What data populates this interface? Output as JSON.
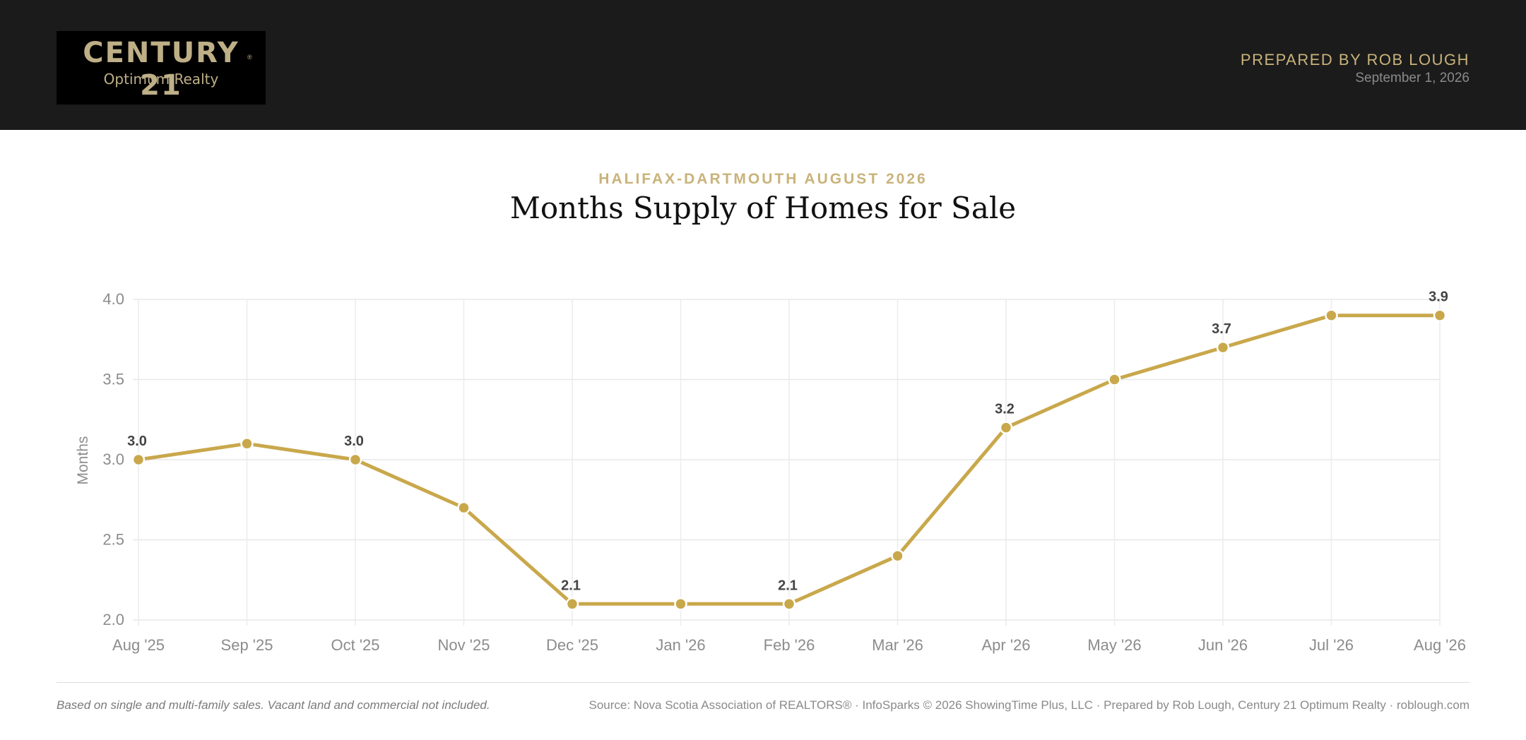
{
  "header": {
    "logo_brand": "CENTURY 21",
    "logo_reg": "®",
    "logo_sub": "Optimum Realty",
    "prepared_by": "PREPARED BY ROB LOUGH",
    "date": "September 1, 2026"
  },
  "colors": {
    "header_bg": "#1b1b1b",
    "accent_gold": "#c9a84c",
    "brand_gold": "#beaf87"
  },
  "chart_data": {
    "type": "line",
    "eyebrow": "HALIFAX-DARTMOUTH AUGUST 2026",
    "title": "Months Supply of Homes for Sale",
    "ylabel": "Months",
    "ylim": [
      2.0,
      4.0
    ],
    "yticks": [
      "4.0",
      "3.5",
      "3.0",
      "2.5",
      "2.0"
    ],
    "grid": true,
    "categories": [
      "Aug '25",
      "Sep '25",
      "Oct '25",
      "Nov '25",
      "Dec '25",
      "Jan '26",
      "Feb '26",
      "Mar '26",
      "Apr '26",
      "May '26",
      "Jun '26",
      "Jul '26",
      "Aug '26"
    ],
    "series": [
      {
        "values": [
          3.0,
          3.1,
          3.0,
          2.7,
          2.1,
          2.1,
          2.1,
          2.4,
          3.2,
          3.5,
          3.7,
          3.9,
          3.9
        ],
        "color": "#c9a84c"
      }
    ],
    "data_labels": [
      {
        "index": 0,
        "text": "3.0"
      },
      {
        "index": 2,
        "text": "3.0"
      },
      {
        "index": 4,
        "text": "2.1"
      },
      {
        "index": 6,
        "text": "2.1"
      },
      {
        "index": 8,
        "text": "3.2"
      },
      {
        "index": 10,
        "text": "3.7"
      },
      {
        "index": 12,
        "text": "3.9"
      }
    ]
  },
  "footer": {
    "note": "Based on single and multi-family sales. Vacant land and commercial not included.",
    "source": "Source: Nova Scotia Association of REALTORS® · InfoSparks © 2026 ShowingTime Plus, LLC · Prepared by Rob Lough, Century 21 Optimum Realty · roblough.com"
  }
}
